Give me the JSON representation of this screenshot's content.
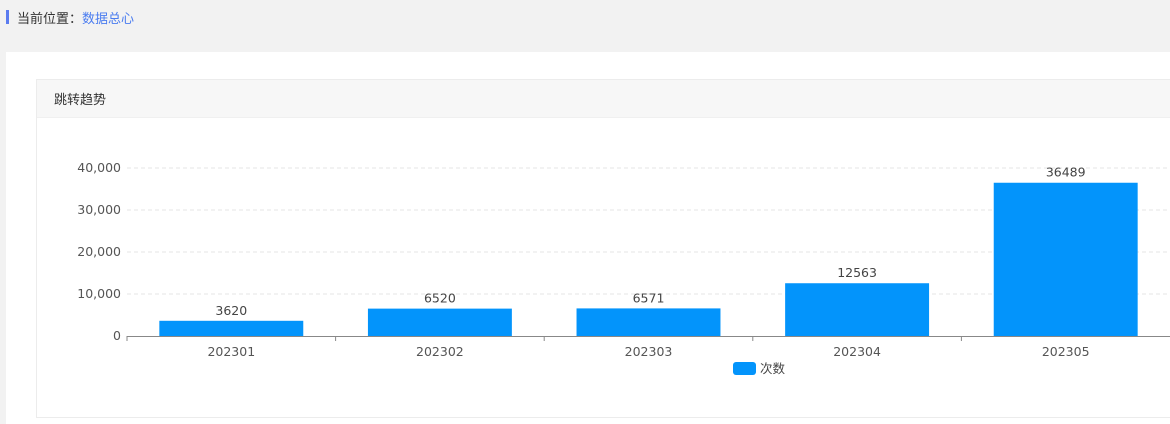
{
  "breadcrumb": {
    "label": "当前位置：",
    "current": "数据总心"
  },
  "card": {
    "title": "跳转趋势"
  },
  "colors": {
    "bar": "#0394fb",
    "accent_bar": "#5b7cf0",
    "link": "#4a7cf0"
  },
  "chart_data": {
    "type": "bar",
    "title": "跳转趋势",
    "categories": [
      "202301",
      "202302",
      "202303",
      "202304",
      "202305"
    ],
    "series": [
      {
        "name": "次数",
        "values": [
          3620,
          6520,
          6571,
          12563,
          36489
        ]
      }
    ],
    "yticks": [
      "0",
      "10,000",
      "20,000",
      "30,000",
      "40,000"
    ],
    "ylim": [
      0,
      40000
    ],
    "xlabel": "",
    "ylabel": "",
    "grid": true,
    "legend": "bottom-center",
    "data_labels": true
  }
}
